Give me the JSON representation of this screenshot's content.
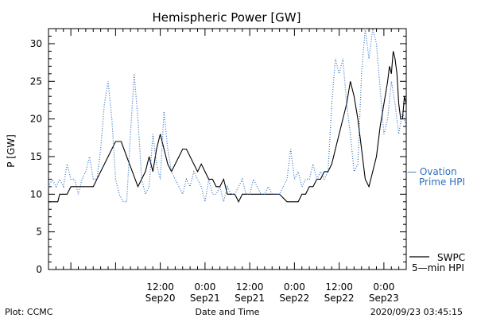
{
  "chart_data": {
    "type": "line",
    "title": "Hemispheric Power [GW]",
    "ylabel": "P [GW]",
    "xlabel": "Date and Time",
    "ylim": [
      0,
      32
    ],
    "xlim": [
      "2020-09-19 06:00",
      "2020-09-23 06:00"
    ],
    "y_ticks": [
      0,
      5,
      10,
      15,
      20,
      25,
      30
    ],
    "x_ticks": [
      {
        "time": "2020-09-20 12:00",
        "label": "12:00",
        "sublabel": "Sep20"
      },
      {
        "time": "2020-09-21 00:00",
        "label": "0:00",
        "sublabel": "Sep21"
      },
      {
        "time": "2020-09-21 12:00",
        "label": "12:00",
        "sublabel": "Sep21"
      },
      {
        "time": "2020-09-22 00:00",
        "label": "0:00",
        "sublabel": "Sep22"
      },
      {
        "time": "2020-09-22 12:00",
        "label": "12:00",
        "sublabel": "Sep22"
      },
      {
        "time": "2020-09-23 00:00",
        "label": "0:00",
        "sublabel": "Sep23"
      }
    ],
    "series": [
      {
        "name": "SWPC 5-min HPI",
        "style": "solid",
        "color": "#000000",
        "points": [
          [
            "2020-09-19 06:00",
            9
          ],
          [
            "2020-09-19 08:30",
            9
          ],
          [
            "2020-09-19 09:00",
            10
          ],
          [
            "2020-09-19 11:00",
            10
          ],
          [
            "2020-09-19 12:00",
            11
          ],
          [
            "2020-09-19 18:00",
            11
          ],
          [
            "2020-09-19 20:00",
            13
          ],
          [
            "2020-09-19 22:00",
            15
          ],
          [
            "2020-09-20 00:00",
            17
          ],
          [
            "2020-09-20 01:30",
            17
          ],
          [
            "2020-09-20 03:00",
            15
          ],
          [
            "2020-09-20 04:30",
            13
          ],
          [
            "2020-09-20 06:00",
            11
          ],
          [
            "2020-09-20 08:00",
            13
          ],
          [
            "2020-09-20 09:00",
            15
          ],
          [
            "2020-09-20 10:00",
            13
          ],
          [
            "2020-09-20 11:00",
            16
          ],
          [
            "2020-09-20 12:00",
            18
          ],
          [
            "2020-09-20 13:00",
            16
          ],
          [
            "2020-09-20 14:00",
            14
          ],
          [
            "2020-09-20 15:00",
            13
          ],
          [
            "2020-09-20 16:00",
            14
          ],
          [
            "2020-09-20 17:00",
            15
          ],
          [
            "2020-09-20 18:00",
            16
          ],
          [
            "2020-09-20 19:00",
            16
          ],
          [
            "2020-09-20 20:00",
            15
          ],
          [
            "2020-09-20 21:00",
            14
          ],
          [
            "2020-09-20 22:00",
            13
          ],
          [
            "2020-09-20 23:00",
            14
          ],
          [
            "2020-09-21 00:00",
            13
          ],
          [
            "2020-09-21 01:00",
            12
          ],
          [
            "2020-09-21 02:00",
            12
          ],
          [
            "2020-09-21 03:00",
            11
          ],
          [
            "2020-09-21 04:00",
            11
          ],
          [
            "2020-09-21 05:00",
            12
          ],
          [
            "2020-09-21 06:00",
            10
          ],
          [
            "2020-09-21 07:00",
            10
          ],
          [
            "2020-09-21 08:00",
            10
          ],
          [
            "2020-09-21 09:00",
            9
          ],
          [
            "2020-09-21 10:00",
            10
          ],
          [
            "2020-09-21 18:00",
            10
          ],
          [
            "2020-09-21 20:00",
            10
          ],
          [
            "2020-09-21 22:00",
            9
          ],
          [
            "2020-09-22 01:00",
            9
          ],
          [
            "2020-09-22 02:00",
            10
          ],
          [
            "2020-09-22 03:00",
            10
          ],
          [
            "2020-09-22 04:00",
            11
          ],
          [
            "2020-09-22 05:00",
            11
          ],
          [
            "2020-09-22 06:00",
            12
          ],
          [
            "2020-09-22 07:00",
            12
          ],
          [
            "2020-09-22 08:00",
            13
          ],
          [
            "2020-09-22 09:00",
            13
          ],
          [
            "2020-09-22 10:00",
            14
          ],
          [
            "2020-09-22 11:00",
            16
          ],
          [
            "2020-09-22 12:00",
            18
          ],
          [
            "2020-09-22 13:00",
            20
          ],
          [
            "2020-09-22 14:00",
            22
          ],
          [
            "2020-09-22 15:00",
            25
          ],
          [
            "2020-09-22 16:00",
            23
          ],
          [
            "2020-09-22 17:00",
            20
          ],
          [
            "2020-09-22 18:00",
            16
          ],
          [
            "2020-09-22 19:00",
            12
          ],
          [
            "2020-09-22 20:00",
            11
          ],
          [
            "2020-09-22 21:00",
            13
          ],
          [
            "2020-09-22 22:00",
            15
          ],
          [
            "2020-09-22 23:00",
            19
          ],
          [
            "2020-09-23 00:00",
            22
          ],
          [
            "2020-09-23 01:00",
            25
          ],
          [
            "2020-09-23 01:30",
            27
          ],
          [
            "2020-09-23 02:00",
            26
          ],
          [
            "2020-09-23 02:30",
            29
          ],
          [
            "2020-09-23 03:00",
            28
          ],
          [
            "2020-09-23 03:30",
            26
          ],
          [
            "2020-09-23 04:00",
            22
          ],
          [
            "2020-09-23 04:30",
            20
          ],
          [
            "2020-09-23 05:00",
            20
          ],
          [
            "2020-09-23 05:30",
            23
          ],
          [
            "2020-09-23 06:00",
            22
          ]
        ]
      },
      {
        "name": "Ovation Prime HPI",
        "style": "dotted",
        "color": "#2f6fbf",
        "points": [
          [
            "2020-09-19 06:00",
            11
          ],
          [
            "2020-09-19 07:00",
            12
          ],
          [
            "2020-09-19 08:00",
            11
          ],
          [
            "2020-09-19 09:00",
            12
          ],
          [
            "2020-09-19 10:00",
            11
          ],
          [
            "2020-09-19 11:00",
            14
          ],
          [
            "2020-09-19 12:00",
            12
          ],
          [
            "2020-09-19 13:00",
            12
          ],
          [
            "2020-09-19 14:00",
            10
          ],
          [
            "2020-09-19 15:00",
            12
          ],
          [
            "2020-09-19 16:00",
            13
          ],
          [
            "2020-09-19 17:00",
            15
          ],
          [
            "2020-09-19 18:00",
            12
          ],
          [
            "2020-09-19 19:00",
            12
          ],
          [
            "2020-09-19 20:00",
            16
          ],
          [
            "2020-09-19 21:00",
            22
          ],
          [
            "2020-09-19 22:00",
            25
          ],
          [
            "2020-09-19 23:00",
            20
          ],
          [
            "2020-09-20 00:00",
            12
          ],
          [
            "2020-09-20 01:00",
            10
          ],
          [
            "2020-09-20 02:00",
            9
          ],
          [
            "2020-09-20 03:00",
            9
          ],
          [
            "2020-09-20 04:00",
            18
          ],
          [
            "2020-09-20 05:00",
            26
          ],
          [
            "2020-09-20 06:00",
            20
          ],
          [
            "2020-09-20 07:00",
            12
          ],
          [
            "2020-09-20 08:00",
            10
          ],
          [
            "2020-09-20 09:00",
            11
          ],
          [
            "2020-09-20 10:00",
            18
          ],
          [
            "2020-09-20 11:00",
            14
          ],
          [
            "2020-09-20 12:00",
            12
          ],
          [
            "2020-09-20 13:00",
            21
          ],
          [
            "2020-09-20 14:00",
            16
          ],
          [
            "2020-09-20 15:00",
            13
          ],
          [
            "2020-09-20 16:00",
            12
          ],
          [
            "2020-09-20 17:00",
            11
          ],
          [
            "2020-09-20 18:00",
            10
          ],
          [
            "2020-09-20 19:00",
            12
          ],
          [
            "2020-09-20 20:00",
            11
          ],
          [
            "2020-09-20 21:00",
            13
          ],
          [
            "2020-09-20 22:00",
            12
          ],
          [
            "2020-09-20 23:00",
            11
          ],
          [
            "2020-09-21 00:00",
            9
          ],
          [
            "2020-09-21 01:00",
            12
          ],
          [
            "2020-09-21 02:00",
            10
          ],
          [
            "2020-09-21 03:00",
            10
          ],
          [
            "2020-09-21 04:00",
            11
          ],
          [
            "2020-09-21 05:00",
            9
          ],
          [
            "2020-09-21 06:00",
            11
          ],
          [
            "2020-09-21 07:00",
            10
          ],
          [
            "2020-09-21 08:00",
            10
          ],
          [
            "2020-09-21 09:00",
            11
          ],
          [
            "2020-09-21 10:00",
            12
          ],
          [
            "2020-09-21 11:00",
            10
          ],
          [
            "2020-09-21 12:00",
            10
          ],
          [
            "2020-09-21 13:00",
            12
          ],
          [
            "2020-09-21 14:00",
            11
          ],
          [
            "2020-09-21 15:00",
            10
          ],
          [
            "2020-09-21 16:00",
            10
          ],
          [
            "2020-09-21 17:00",
            11
          ],
          [
            "2020-09-21 18:00",
            10
          ],
          [
            "2020-09-21 19:00",
            10
          ],
          [
            "2020-09-21 20:00",
            10
          ],
          [
            "2020-09-21 21:00",
            11
          ],
          [
            "2020-09-21 22:00",
            12
          ],
          [
            "2020-09-21 23:00",
            16
          ],
          [
            "2020-09-22 00:00",
            12
          ],
          [
            "2020-09-22 01:00",
            13
          ],
          [
            "2020-09-22 02:00",
            11
          ],
          [
            "2020-09-22 03:00",
            12
          ],
          [
            "2020-09-22 04:00",
            12
          ],
          [
            "2020-09-22 05:00",
            14
          ],
          [
            "2020-09-22 06:00",
            12
          ],
          [
            "2020-09-22 07:00",
            13
          ],
          [
            "2020-09-22 08:00",
            12
          ],
          [
            "2020-09-22 09:00",
            13
          ],
          [
            "2020-09-22 10:00",
            22
          ],
          [
            "2020-09-22 11:00",
            28
          ],
          [
            "2020-09-22 12:00",
            26
          ],
          [
            "2020-09-22 13:00",
            28
          ],
          [
            "2020-09-22 14:00",
            22
          ],
          [
            "2020-09-22 15:00",
            18
          ],
          [
            "2020-09-22 16:00",
            13
          ],
          [
            "2020-09-22 17:00",
            14
          ],
          [
            "2020-09-22 18:00",
            26
          ],
          [
            "2020-09-22 19:00",
            32
          ],
          [
            "2020-09-22 20:00",
            28
          ],
          [
            "2020-09-22 21:00",
            32
          ],
          [
            "2020-09-22 22:00",
            30
          ],
          [
            "2020-09-22 23:00",
            24
          ],
          [
            "2020-09-23 00:00",
            18
          ],
          [
            "2020-09-23 01:00",
            20
          ],
          [
            "2020-09-23 02:00",
            25
          ],
          [
            "2020-09-23 03:00",
            22
          ],
          [
            "2020-09-23 04:00",
            18
          ],
          [
            "2020-09-23 05:00",
            21
          ],
          [
            "2020-09-23 06:00",
            19
          ]
        ]
      }
    ],
    "legend": [
      {
        "line1": "— Ovation",
        "line2": "Prime HPI",
        "color": "#2f6fbf"
      },
      {
        "line1": "SWPC",
        "line2": "5—min HPI",
        "color": "#000000"
      }
    ]
  },
  "footer": {
    "left": "Plot: CCMC",
    "center": "Date and Time",
    "right": "2020/09/23 03:45:15"
  }
}
